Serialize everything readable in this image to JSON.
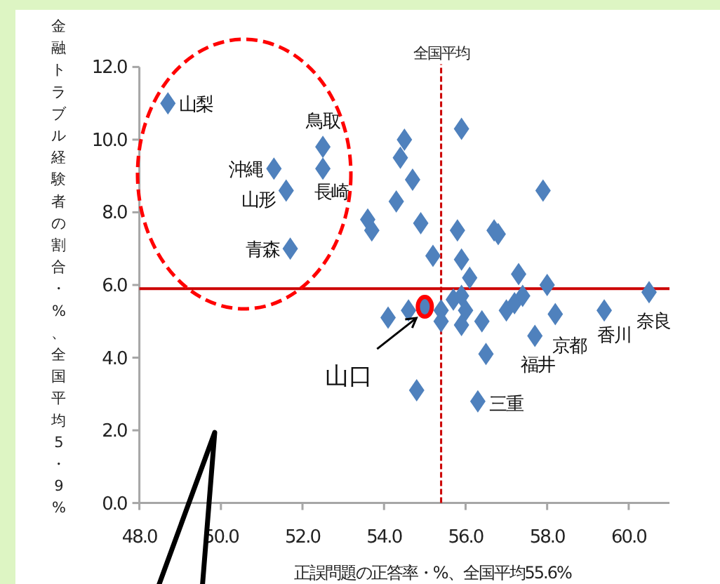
{
  "chart_data": {
    "type": "scatter",
    "xlabel": "正誤問題の正答率・%、全国平均55.6%",
    "ylabel": "金融トラブル経験者の割合・%、全国平均5・9%",
    "xlim": [
      48,
      61
    ],
    "ylim": [
      0,
      12
    ],
    "xticks": [
      {
        "value": 48,
        "label": "48.0"
      },
      {
        "value": 50,
        "label": "50.0"
      },
      {
        "value": 52,
        "label": "52.0"
      },
      {
        "value": 54,
        "label": "54.0"
      },
      {
        "value": 56,
        "label": "56.0"
      },
      {
        "value": 58,
        "label": "58.0"
      },
      {
        "value": 60,
        "label": "60.0"
      }
    ],
    "yticks": [
      {
        "value": 0,
        "label": "0.0"
      },
      {
        "value": 2,
        "label": "2.0"
      },
      {
        "value": 4,
        "label": "4.0"
      },
      {
        "value": 6,
        "label": "6.0"
      },
      {
        "value": 8,
        "label": "8.0"
      },
      {
        "value": 10,
        "label": "10.0"
      },
      {
        "value": 12,
        "label": "12.0"
      }
    ],
    "grid": false,
    "marker": "diamond",
    "series": [
      {
        "color": "#4f81bd",
        "x": [
          48.7,
          52.5,
          52.5,
          51.3,
          51.6,
          51.7,
          60.5,
          59.4,
          58.2,
          57.7,
          56.3,
          55.0,
          55.9,
          54.5,
          54.4,
          54.7,
          54.3,
          57.9,
          53.6,
          53.7,
          54.9,
          55.8,
          56.7,
          56.8,
          55.2,
          55.9,
          56.1,
          57.3,
          58.0,
          54.1,
          55.4,
          55.7,
          55.9,
          56.0,
          55.4,
          55.9,
          56.4,
          57.0,
          57.2,
          57.4,
          56.5,
          54.8,
          54.6
        ],
        "values": [
          11.0,
          9.8,
          9.2,
          9.2,
          8.6,
          7.0,
          5.8,
          5.3,
          5.2,
          4.6,
          2.8,
          5.4,
          10.3,
          10.0,
          9.5,
          8.9,
          8.3,
          8.6,
          7.8,
          7.5,
          7.7,
          7.5,
          7.5,
          7.4,
          6.8,
          6.7,
          6.2,
          6.3,
          6.0,
          5.1,
          5.3,
          5.6,
          5.7,
          5.3,
          5.0,
          4.9,
          5.0,
          5.3,
          5.5,
          5.7,
          4.1,
          3.1,
          5.3
        ]
      }
    ],
    "ref_lines": [
      {
        "axis": "x",
        "value": 55.4,
        "label": "全国平均",
        "color": "#cc0000",
        "line_style": "dashed"
      },
      {
        "axis": "y",
        "value": 5.9,
        "label": null,
        "color": "#cc0000",
        "line_style": "solid"
      }
    ],
    "annotations": [
      {
        "text": "山梨",
        "x": 48.7,
        "y": 11.0
      },
      {
        "text": "鳥取",
        "x": 52.5,
        "y": 9.8
      },
      {
        "text": "長崎",
        "x": 52.5,
        "y": 9.2
      },
      {
        "text": "沖縄",
        "x": 51.3,
        "y": 9.2
      },
      {
        "text": "山形",
        "x": 51.6,
        "y": 8.6
      },
      {
        "text": "青森",
        "x": 51.7,
        "y": 7.0
      },
      {
        "text": "奈良",
        "x": 60.5,
        "y": 5.8
      },
      {
        "text": "香川",
        "x": 59.4,
        "y": 5.3
      },
      {
        "text": "京都",
        "x": 58.2,
        "y": 5.2
      },
      {
        "text": "福井",
        "x": 57.7,
        "y": 4.6
      },
      {
        "text": "三重",
        "x": 56.3,
        "y": 2.8
      },
      "山口"
    ]
  }
}
